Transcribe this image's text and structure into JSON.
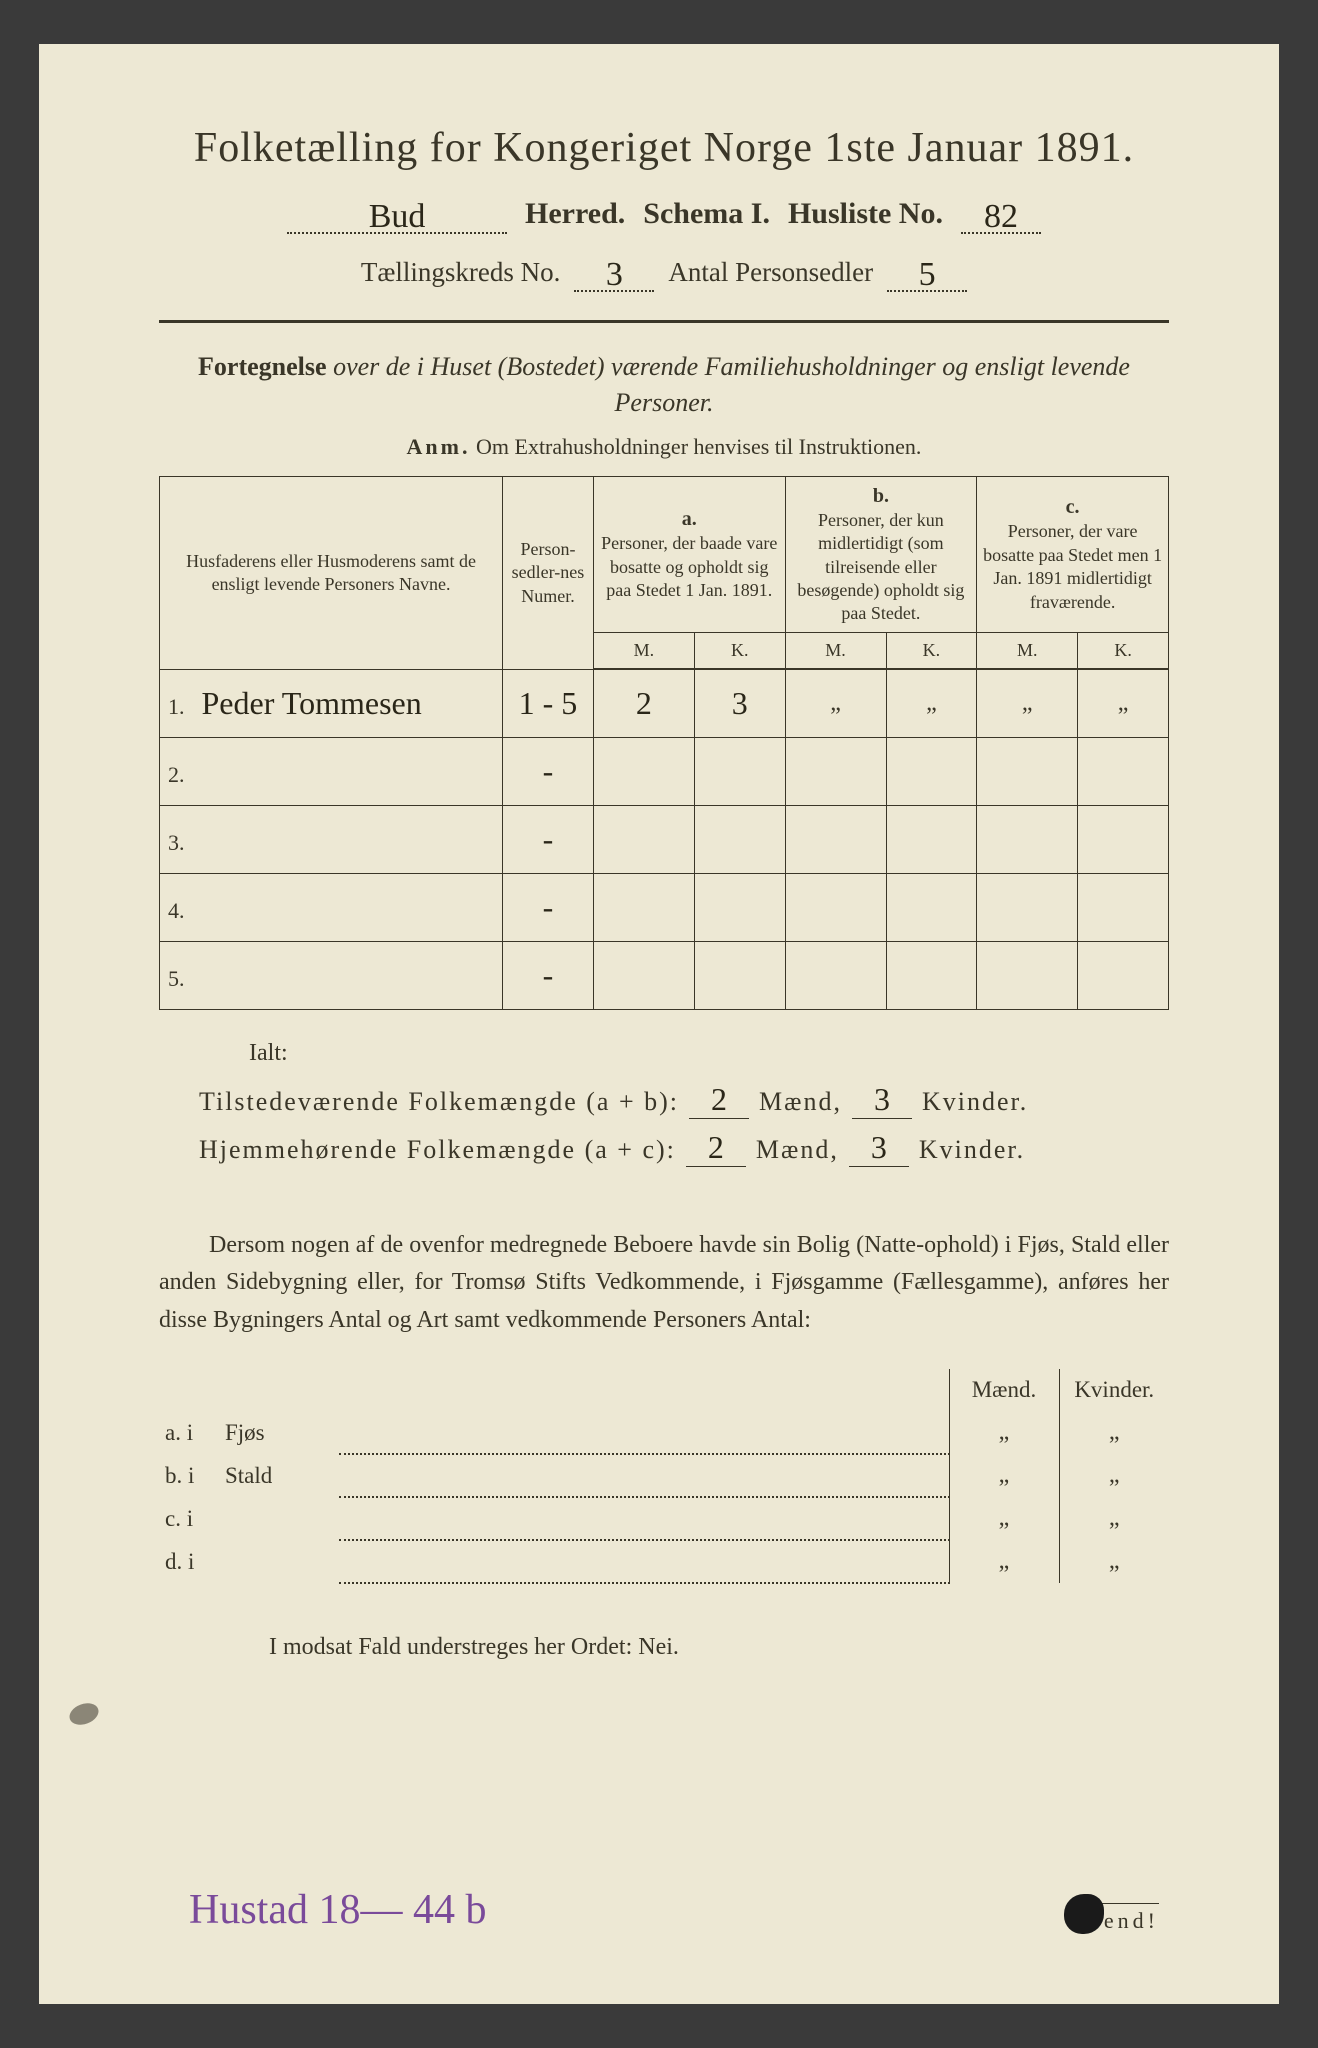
{
  "colors": {
    "page_bg": "#ede8d4",
    "outer_bg": "#3a3a3a",
    "text": "#3a3628",
    "handwriting": "#2a2618",
    "purple_hw": "#7a4a9a"
  },
  "title": "Folketælling for Kongeriget Norge 1ste Januar 1891.",
  "header": {
    "herred_value": "Bud",
    "herred_label": "Herred.",
    "schema_label": "Schema I.",
    "husliste_label": "Husliste No.",
    "husliste_value": "82",
    "kreds_label": "Tællingskreds No.",
    "kreds_value": "3",
    "antal_label": "Antal Personsedler",
    "antal_value": "5"
  },
  "subtitle": {
    "lead": "Fortegnelse",
    "rest_italic": " over de i Huset (Bostedet) værende Familiehusholdninger og ensligt levende Personer.",
    "anm_label": "Anm.",
    "anm_text": "Om Extrahusholdninger henvises til Instruktionen."
  },
  "table": {
    "col_persons": "Husfaderens eller Husmoderens samt de ensligt levende Personers Navne.",
    "col_num": "Person-sedler-nes Numer.",
    "col_a_label": "a.",
    "col_a": "Personer, der baade vare bosatte og opholdt sig paa Stedet 1 Jan. 1891.",
    "col_b_label": "b.",
    "col_b": "Personer, der kun midlertidigt (som tilreisende eller besøgende) opholdt sig paa Stedet.",
    "col_c_label": "c.",
    "col_c": "Personer, der vare bosatte paa Stedet men 1 Jan. 1891 midlertidigt fraværende.",
    "m": "M.",
    "k": "K.",
    "rows": [
      {
        "n": "1.",
        "name": "Peder Tommesen",
        "num": "1 - 5",
        "am": "2",
        "ak": "3",
        "bm": "„",
        "bk": "„",
        "cm": "„",
        "ck": "„"
      },
      {
        "n": "2.",
        "name": "",
        "num": "-",
        "am": "",
        "ak": "",
        "bm": "",
        "bk": "",
        "cm": "",
        "ck": ""
      },
      {
        "n": "3.",
        "name": "",
        "num": "-",
        "am": "",
        "ak": "",
        "bm": "",
        "bk": "",
        "cm": "",
        "ck": ""
      },
      {
        "n": "4.",
        "name": "",
        "num": "-",
        "am": "",
        "ak": "",
        "bm": "",
        "bk": "",
        "cm": "",
        "ck": ""
      },
      {
        "n": "5.",
        "name": "",
        "num": "-",
        "am": "",
        "ak": "",
        "bm": "",
        "bk": "",
        "cm": "",
        "ck": ""
      }
    ]
  },
  "totals": {
    "ialt": "Ialt:",
    "line1_label": "Tilstedeværende Folkemængde (a + b):",
    "line1_m": "2",
    "line1_k": "3",
    "line2_label": "Hjemmehørende Folkemængde (a + c):",
    "line2_m": "2",
    "line2_k": "3",
    "maend": "Mænd,",
    "kvinder": "Kvinder."
  },
  "paragraph": "Dersom nogen af de ovenfor medregnede Beboere havde sin Bolig (Natte-ophold) i Fjøs, Stald eller anden Sidebygning eller, for Tromsø Stifts Vedkommende, i Fjøsgamme (Fællesgamme), anføres her disse Bygningers Antal og Art samt vedkommende Personers Antal:",
  "buildings": {
    "head_m": "Mænd.",
    "head_k": "Kvinder.",
    "rows": [
      {
        "label": "a.  i",
        "type": "Fjøs",
        "m": "„",
        "k": "„"
      },
      {
        "label": "b.  i",
        "type": "Stald",
        "m": "„",
        "k": "„"
      },
      {
        "label": "c.  i",
        "type": "",
        "m": "„",
        "k": "„"
      },
      {
        "label": "d.  i",
        "type": "",
        "m": "„",
        "k": "„"
      }
    ]
  },
  "nei": "I modsat Fald understreges her Ordet: Nei.",
  "footer_hw": "Hustad 18— 44 b",
  "vend": "Vend!"
}
